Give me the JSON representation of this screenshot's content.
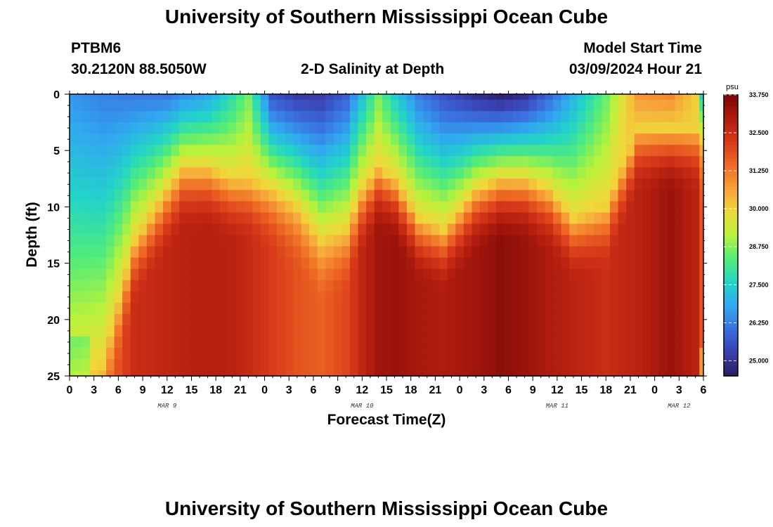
{
  "header": {
    "title": "University of Southern Mississippi Ocean Cube",
    "footer_title": "University of Southern Mississippi Ocean Cube",
    "station_id": "PTBM6",
    "station_coords": "30.2120N  88.5050W",
    "plot_title": "2-D Salinity at Depth",
    "model_start_label": "Model Start Time",
    "model_start_value": "03/09/2024 Hour 21"
  },
  "chart_data": {
    "type": "heatmap",
    "title": "2-D Salinity at Depth",
    "xlabel": "Forecast Time(Z)",
    "ylabel": "Depth (ft)",
    "x_tick_labels": [
      "0",
      "3",
      "6",
      "9",
      "12",
      "15",
      "18",
      "21",
      "0",
      "3",
      "6",
      "9",
      "12",
      "15",
      "18",
      "21",
      "0",
      "3",
      "6",
      "9",
      "12",
      "15",
      "18",
      "21",
      "0",
      "3",
      "6"
    ],
    "x_range_hours": [
      0,
      78
    ],
    "day_labels": [
      {
        "label": "MAR 9",
        "hour": 12
      },
      {
        "label": "MAR 10",
        "hour": 36
      },
      {
        "label": "MAR 11",
        "hour": 60
      },
      {
        "label": "MAR 12",
        "hour": 75
      }
    ],
    "y_tick_labels": [
      "0",
      "5",
      "10",
      "15",
      "20",
      "25"
    ],
    "y_ticks": [
      0,
      5,
      10,
      15,
      20,
      25
    ],
    "y_range_ft": [
      0,
      25
    ],
    "colorbar": {
      "units": "psu",
      "min": 24.5,
      "max": 33.75,
      "tick_labels": [
        "33.750",
        "32.500",
        "31.250",
        "30.000",
        "28.750",
        "27.500",
        "26.250",
        "25.000"
      ],
      "ticks": [
        33.75,
        32.5,
        31.25,
        30.0,
        28.75,
        27.5,
        26.25,
        25.0
      ],
      "colors": [
        "#2c1a5c",
        "#3a3fae",
        "#3b6fe0",
        "#31a8f0",
        "#22d4c8",
        "#52ec7a",
        "#b8f23c",
        "#f0d83a",
        "#f7a23a",
        "#ee6b24",
        "#d8391a",
        "#b01c0e",
        "#7a0707"
      ]
    },
    "grid": {
      "n_hours": 79,
      "n_depths": 26,
      "description": "salinity (psu) at hourly forecast times 0..78 and depths 0..25 ft; low fresh water near surface, high salinity at depth",
      "control_hours": [
        0,
        4,
        8,
        12,
        14,
        17,
        20,
        22,
        25,
        28,
        31,
        34,
        36,
        38,
        40,
        43,
        46,
        50,
        53,
        56,
        59,
        62,
        66,
        70,
        74,
        77,
        78
      ],
      "isohaline_30_depth_ft": [
        26,
        24,
        13,
        8.5,
        6.5,
        6.5,
        7.5,
        7.5,
        8.5,
        10,
        13,
        12,
        8.5,
        6.5,
        7.5,
        11,
        12,
        8.5,
        7.5,
        7.5,
        8.5,
        11,
        10,
        3,
        3,
        3,
        4
      ],
      "surface_salinity_psu": [
        26.6,
        26.3,
        26.2,
        26.2,
        26.5,
        26.8,
        27.8,
        28.6,
        25.6,
        25.2,
        25.2,
        25.8,
        27.2,
        28.6,
        27.5,
        26.2,
        25.6,
        25.0,
        24.7,
        25.0,
        25.9,
        27.0,
        28.5,
        30.8,
        31.0,
        30.0,
        27.6
      ],
      "deep_salinity_psu": [
        30.0,
        31.2,
        32.5,
        32.7,
        32.8,
        32.9,
        32.8,
        32.6,
        32.2,
        31.8,
        31.6,
        32.0,
        32.7,
        33.2,
        33.3,
        33.1,
        33.0,
        33.2,
        33.5,
        33.3,
        33.0,
        32.8,
        32.5,
        32.8,
        33.3,
        32.8,
        31.8
      ]
    }
  }
}
